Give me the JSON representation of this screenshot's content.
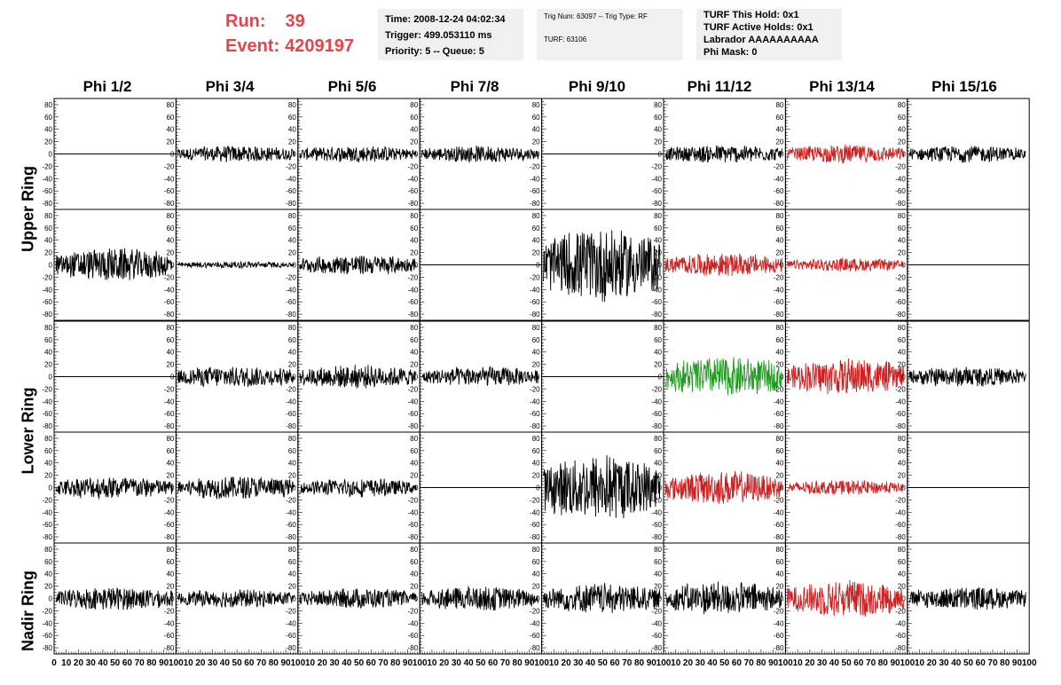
{
  "run": {
    "run_label": "Run:",
    "run_value": "39",
    "event_label": "Event:",
    "event_value": "4209197"
  },
  "info": {
    "time": "Time: 2008-12-24 04:02:34",
    "trigger": "Trigger: 499.053110 ms",
    "priority": "Priority: 5 -- Queue: 5",
    "trig_num": "Trig Num: 63097 -- Trig Type: RF",
    "turf": "TURF: 63106",
    "turf_hold": "TURF This Hold: 0x1",
    "turf_active": "TURF Active Holds: 0x1",
    "labrador": "Labrador AAAAAAAAAA",
    "phi_mask": "Phi Mask: 0"
  },
  "columns": [
    "Phi 1/2",
    "Phi 3/4",
    "Phi 5/6",
    "Phi 7/8",
    "Phi 9/10",
    "Phi 11/12",
    "Phi 13/14",
    "Phi 15/16"
  ],
  "ring_labels": {
    "upper": "Upper Ring",
    "lower": "Lower Ring",
    "nadir": "Nadir Ring"
  },
  "colors": {
    "run_text": "#e0474c",
    "trace_default": "#000000",
    "trace_red": "#cc2222",
    "trace_green": "#229922",
    "panel_bg": "#f0f0f0"
  },
  "chart_data": {
    "type": "line",
    "rows": 5,
    "cols": 8,
    "x_range": [
      0,
      100
    ],
    "y_range": [
      -90,
      90
    ],
    "y_ticks": [
      -80,
      -60,
      -40,
      -20,
      0,
      20,
      40,
      60,
      80
    ],
    "x_tick_labels": [
      "0",
      "10",
      "20",
      "30",
      "40",
      "50",
      "60",
      "70",
      "80",
      "90",
      "100"
    ],
    "panels": [
      [
        "flat",
        10,
        10,
        10,
        "flat",
        11,
        11,
        10
      ],
      [
        20,
        4,
        12,
        "flat",
        45,
        14,
        8,
        "flat"
      ],
      [
        "flat",
        13,
        14,
        12,
        "flat",
        24,
        22,
        12
      ],
      [
        14,
        14,
        11,
        "flat",
        40,
        20,
        9,
        "flat"
      ],
      [
        14,
        11,
        12,
        15,
        18,
        20,
        22,
        14
      ]
    ],
    "panel_colors": [
      [
        "black",
        "black",
        "black",
        "black",
        "black",
        "black",
        "red",
        "black"
      ],
      [
        "black",
        "black",
        "black",
        "black",
        "black",
        "red",
        "red",
        "black"
      ],
      [
        "black",
        "black",
        "black",
        "black",
        "black",
        "green",
        "red",
        "black"
      ],
      [
        "black",
        "black",
        "black",
        "black",
        "black",
        "red",
        "red",
        "black"
      ],
      [
        "black",
        "black",
        "black",
        "black",
        "black",
        "black",
        "red",
        "black"
      ]
    ]
  }
}
